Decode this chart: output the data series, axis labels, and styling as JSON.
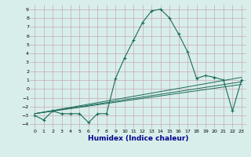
{
  "xlabel": "Humidex (Indice chaleur)",
  "xlim": [
    -0.5,
    23.5
  ],
  "ylim": [
    -4.5,
    9.5
  ],
  "xticks": [
    0,
    1,
    2,
    3,
    4,
    5,
    6,
    7,
    8,
    9,
    10,
    11,
    12,
    13,
    14,
    15,
    16,
    17,
    18,
    19,
    20,
    21,
    22,
    23
  ],
  "yticks": [
    -4,
    -3,
    -2,
    -1,
    0,
    1,
    2,
    3,
    4,
    5,
    6,
    7,
    8,
    9
  ],
  "bg_color": "#d8eeea",
  "grid_color_major": "#c8a8b8",
  "grid_color_minor": "#c8a8b8",
  "line_color": "#1a6b5a",
  "main_curve_x": [
    0,
    1,
    2,
    3,
    4,
    5,
    6,
    7,
    8,
    9,
    10,
    11,
    12,
    13,
    14,
    15,
    16,
    17,
    18,
    19,
    20,
    21,
    22,
    23
  ],
  "main_curve_y": [
    -3.0,
    -3.5,
    -2.5,
    -2.8,
    -2.8,
    -2.8,
    -3.8,
    -2.8,
    -2.8,
    1.2,
    3.5,
    5.5,
    7.5,
    8.8,
    9.0,
    8.0,
    6.2,
    4.2,
    1.2,
    1.5,
    1.3,
    1.0,
    -2.5,
    1.0
  ],
  "line2_x": [
    0,
    23
  ],
  "line2_y": [
    -2.8,
    1.3
  ],
  "line3_x": [
    0,
    23
  ],
  "line3_y": [
    -2.8,
    0.8
  ],
  "line4_x": [
    0,
    23
  ],
  "line4_y": [
    -2.8,
    0.5
  ],
  "xlabel_color": "#00008b",
  "xlabel_fontsize": 6.5
}
